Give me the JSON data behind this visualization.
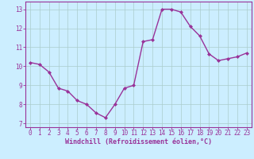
{
  "x": [
    0,
    1,
    2,
    3,
    4,
    5,
    6,
    7,
    8,
    9,
    10,
    11,
    12,
    13,
    14,
    15,
    16,
    17,
    18,
    19,
    20,
    21,
    22,
    23
  ],
  "y": [
    10.2,
    10.1,
    9.7,
    8.85,
    8.7,
    8.2,
    8.0,
    7.55,
    7.3,
    8.0,
    8.85,
    9.0,
    11.3,
    11.4,
    13.0,
    13.0,
    12.85,
    12.1,
    11.6,
    10.65,
    10.3,
    10.4,
    10.5,
    10.7
  ],
  "line_color": "#990099",
  "marker": "D",
  "marker_size": 2.0,
  "bg_color": "#cceeff",
  "grid_color": "#aacccc",
  "xlabel": "Windchill (Refroidissement éolien,°C)",
  "xlim": [
    -0.5,
    23.5
  ],
  "ylim": [
    6.8,
    13.4
  ],
  "yticks": [
    7,
    8,
    9,
    10,
    11,
    12,
    13
  ],
  "xticks": [
    0,
    1,
    2,
    3,
    4,
    5,
    6,
    7,
    8,
    9,
    10,
    11,
    12,
    13,
    14,
    15,
    16,
    17,
    18,
    19,
    20,
    21,
    22,
    23
  ],
  "line_color_hex": "#993399",
  "tick_fontsize": 5.5,
  "xlabel_fontsize": 6.0,
  "line_width": 1.0
}
